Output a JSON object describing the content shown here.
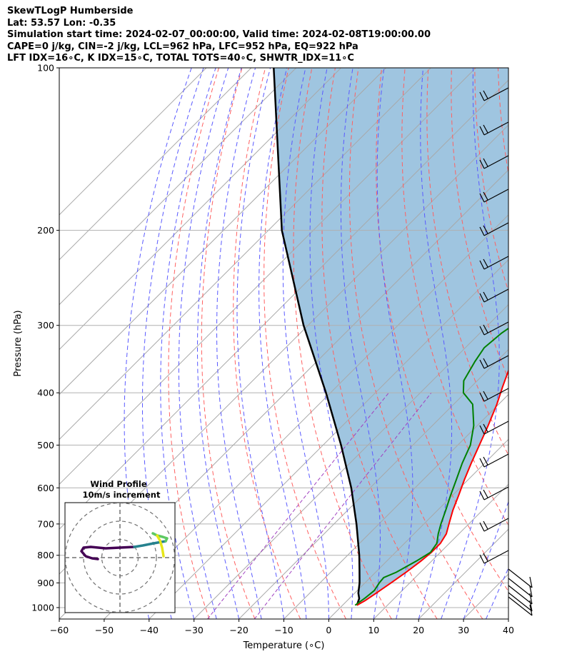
{
  "title_lines": [
    "SkewTLogP Humberside",
    "Lat: 53.57   Lon: -0.35",
    "Simulation start time: 2024-02-07_00:00:00, Valid time: 2024-02-08T19:00:00.00",
    "CAPE=0 j/kg, CIN=-2 j/kg, LCL=962 hPa, LFC=952 hPa, EQ=922 hPa",
    "LFT IDX=16∘C, K IDX=15∘C, TOTAL TOTS=40∘C, SHWTR_IDX=11∘C"
  ],
  "chart_data": {
    "type": "line",
    "diagram": "skew-T log-P",
    "xlabel": "Temperature (∘C)",
    "ylabel": "Pressure (hPa)",
    "xlim": [
      -60,
      40
    ],
    "ylim": [
      1050,
      100
    ],
    "y_scale": "log",
    "x_ticks": [
      -60,
      -50,
      -40,
      -30,
      -20,
      -10,
      0,
      10,
      20,
      30,
      40
    ],
    "x_tick_labels": [
      "−60",
      "−50",
      "−40",
      "−30",
      "−20",
      "−10",
      "0",
      "10",
      "20",
      "30",
      "40"
    ],
    "y_ticks": [
      1000,
      900,
      800,
      700,
      600,
      500,
      400,
      300,
      200,
      100
    ],
    "y_tick_labels": [
      "1000",
      "900",
      "800",
      "700",
      "600",
      "500",
      "400",
      "300",
      "200",
      "100"
    ],
    "grid": true,
    "series": [
      {
        "role": "temperature",
        "color": "#ff0000",
        "points": [
          [
            990,
            3.2
          ],
          [
            970,
            4.0
          ],
          [
            940,
            4.8
          ],
          [
            900,
            5.8
          ],
          [
            860,
            6.8
          ],
          [
            820,
            7.6
          ],
          [
            790,
            8.0
          ],
          [
            760,
            8.0
          ],
          [
            730,
            7.2
          ],
          [
            700,
            5.6
          ],
          [
            660,
            3.4
          ],
          [
            620,
            1.4
          ],
          [
            580,
            -0.8
          ],
          [
            540,
            -3.0
          ],
          [
            500,
            -5.2
          ],
          [
            460,
            -7.6
          ],
          [
            420,
            -10.4
          ],
          [
            390,
            -13.0
          ],
          [
            365,
            -15.2
          ],
          [
            340,
            -17.0
          ],
          [
            320,
            -18.6
          ],
          [
            300,
            -20.6
          ],
          [
            280,
            -22.8
          ],
          [
            260,
            -24.6
          ],
          [
            245,
            -25.6
          ],
          [
            235,
            -25.6
          ],
          [
            225,
            -24.6
          ],
          [
            210,
            -22.6
          ],
          [
            200,
            -21.8
          ],
          [
            180,
            -21.8
          ],
          [
            160,
            -22.6
          ],
          [
            140,
            -22.0
          ],
          [
            125,
            -20.6
          ],
          [
            110,
            -18.6
          ],
          [
            100,
            -16.4
          ]
        ]
      },
      {
        "role": "dewpoint",
        "color": "#008000",
        "points": [
          [
            990,
            2.8
          ],
          [
            960,
            3.4
          ],
          [
            930,
            3.8
          ],
          [
            900,
            3.2
          ],
          [
            880,
            3.0
          ],
          [
            860,
            4.6
          ],
          [
            820,
            6.6
          ],
          [
            790,
            7.8
          ],
          [
            760,
            7.2
          ],
          [
            730,
            5.4
          ],
          [
            700,
            3.8
          ],
          [
            660,
            1.8
          ],
          [
            620,
            -0.4
          ],
          [
            580,
            -2.6
          ],
          [
            540,
            -5.0
          ],
          [
            500,
            -7.2
          ],
          [
            460,
            -10.8
          ],
          [
            420,
            -15.8
          ],
          [
            400,
            -20.4
          ],
          [
            380,
            -23.0
          ],
          [
            350,
            -24.8
          ],
          [
            330,
            -25.8
          ],
          [
            310,
            -25.2
          ],
          [
            290,
            -23.6
          ],
          [
            270,
            -22.4
          ],
          [
            240,
            -21.6
          ],
          [
            220,
            -21.6
          ],
          [
            200,
            -24.2
          ],
          [
            190,
            -24.2
          ],
          [
            180,
            -24.6
          ],
          [
            165,
            -26.0
          ],
          [
            150,
            -27.2
          ],
          [
            130,
            -27.2
          ],
          [
            110,
            -26.4
          ],
          [
            100,
            -25.4
          ]
        ]
      },
      {
        "role": "parcel",
        "color": "#000000",
        "points": [
          [
            990,
            3.2
          ],
          [
            962,
            2.2
          ],
          [
            940,
            0.8
          ],
          [
            900,
            -1.2
          ],
          [
            850,
            -4.2
          ],
          [
            800,
            -7.4
          ],
          [
            700,
            -15.0
          ],
          [
            600,
            -24.2
          ],
          [
            500,
            -36.0
          ],
          [
            400,
            -51.0
          ],
          [
            300,
            -71.0
          ],
          [
            200,
            -97.0
          ],
          [
            100,
            -135.0
          ]
        ]
      }
    ],
    "inset": {
      "title_line1": "Wind Profile",
      "title_line2": "10m/s increment",
      "rings": [
        10,
        20,
        30
      ]
    }
  }
}
